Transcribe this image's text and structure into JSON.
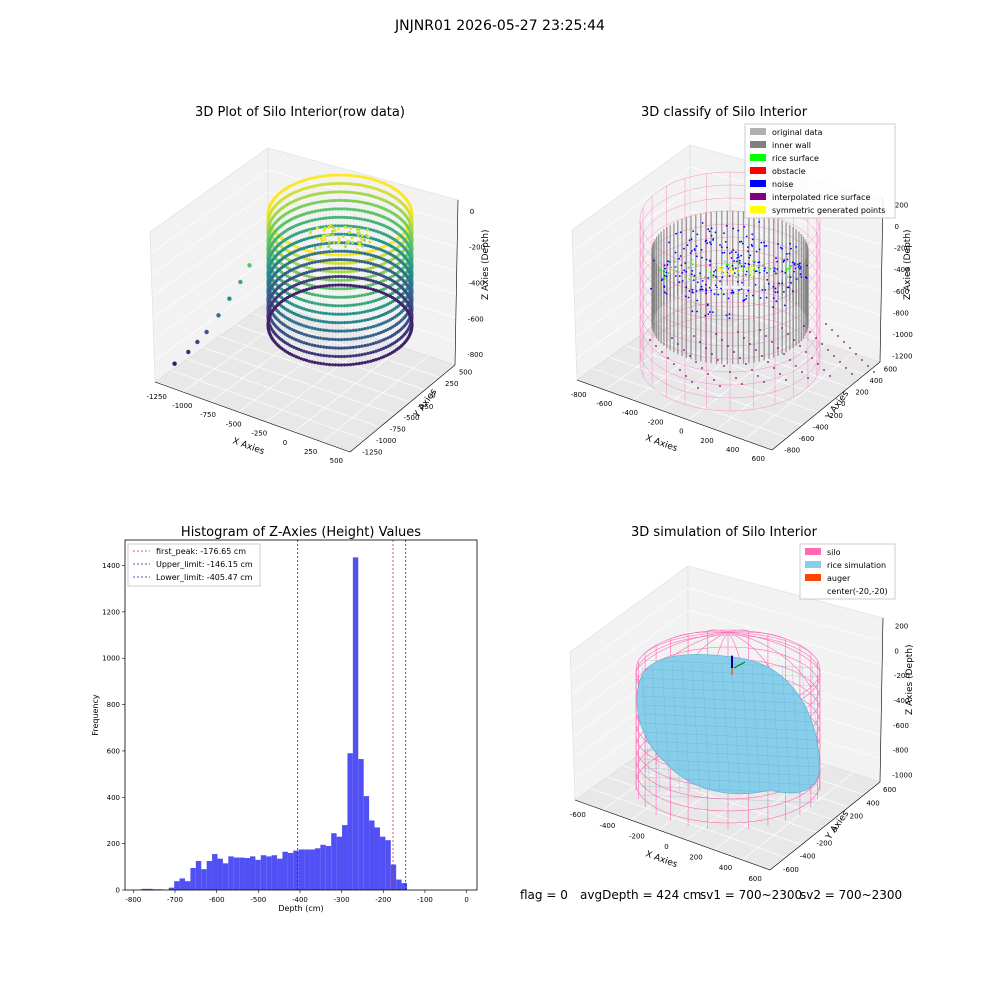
{
  "figure": {
    "suptitle": "JNJNR01 2026-05-27 23:25:44"
  },
  "status": {
    "flag": "flag = 0",
    "avg_depth": "avgDepth = 424 cm",
    "sv1": "sv1 = 700~2300",
    "sv2": "sv2 = 700~2300"
  },
  "colors": {
    "histogram_bar": "#5050f5",
    "first_peak": "#d62728",
    "limits": "#1f1fa8",
    "original_data": "#b0b0b0",
    "inner_wall": "#808080",
    "rice_surface": "#00ff00",
    "obstacle": "#ff0000",
    "noise": "#0000ff",
    "interpolated_rice_surface": "#800080",
    "symmetric_generated_points": "#ffff00",
    "silo": "#ff69b4",
    "rice_simulation": "#87ceeb",
    "auger": "#ff4500"
  },
  "chart_data": [
    {
      "type": "scatter",
      "panel": "raw",
      "title": "3D Plot of Silo Interior(row data)",
      "xlabel": "X Axies",
      "ylabel": "Y Axies",
      "zlabel": "Z Axies (Depth)",
      "x_ticks": [
        "-1250",
        "-1000",
        "-750",
        "-500",
        "-250",
        "0",
        "250",
        "500"
      ],
      "y_ticks": [
        "500",
        "250",
        "0",
        "-250",
        "-500",
        "-750",
        "-1000",
        "-1250"
      ],
      "z_ticks": [
        "0",
        "-200",
        "-400",
        "-600",
        "-800"
      ],
      "xlim": [
        -1250,
        500
      ],
      "ylim": [
        -1250,
        500
      ],
      "zlim": [
        -900,
        0
      ],
      "colormap": "viridis",
      "outlier_points": [
        {
          "x": -1200,
          "y": -1200,
          "z": -850
        },
        {
          "x": -1050,
          "y": -1050,
          "z": -780
        },
        {
          "x": -950,
          "y": -950,
          "z": -720
        },
        {
          "x": -850,
          "y": -850,
          "z": -660
        },
        {
          "x": -720,
          "y": -720,
          "z": -560
        },
        {
          "x": -600,
          "y": -600,
          "z": -460
        },
        {
          "x": -480,
          "y": -480,
          "z": -360
        },
        {
          "x": -380,
          "y": -380,
          "z": -260
        }
      ]
    },
    {
      "type": "scatter",
      "panel": "classify",
      "title": "3D classify of Silo Interior",
      "xlabel": "X Axies",
      "ylabel": "Y Axies",
      "zlabel": "Z Axies (Depth)",
      "x_ticks": [
        "-800",
        "-600",
        "-400",
        "-200",
        "0",
        "200",
        "400",
        "600"
      ],
      "y_ticks": [
        "600",
        "400",
        "200",
        "0",
        "-200",
        "-400",
        "-600",
        "-800"
      ],
      "z_ticks": [
        "200",
        "0",
        "-200",
        "-400",
        "-600",
        "-800",
        "-1000",
        "-1200"
      ],
      "xlim": [
        -800,
        650
      ],
      "ylim": [
        -800,
        650
      ],
      "zlim": [
        -1250,
        250
      ],
      "legend_position": "top-right",
      "legend": [
        {
          "label": "original data",
          "color_key": "original_data"
        },
        {
          "label": "inner wall",
          "color_key": "inner_wall"
        },
        {
          "label": "rice surface",
          "color_key": "rice_surface"
        },
        {
          "label": "obstacle",
          "color_key": "obstacle"
        },
        {
          "label": "noise",
          "color_key": "noise"
        },
        {
          "label": "interpolated rice surface",
          "color_key": "interpolated_rice_surface"
        },
        {
          "label": "symmetric generated points",
          "color_key": "symmetric_generated_points"
        }
      ]
    },
    {
      "type": "bar",
      "panel": "histogram",
      "title": "Histogram of Z-Axies (Height) Values",
      "xlabel": "Depth (cm)",
      "ylabel": "Frequency",
      "xlim": [
        -820,
        25
      ],
      "ylim": [
        0,
        1510
      ],
      "x_ticks": [
        -800,
        -700,
        -600,
        -500,
        -400,
        -300,
        -200,
        -100,
        0
      ],
      "y_ticks": [
        0,
        200,
        400,
        600,
        800,
        1000,
        1200,
        1400
      ],
      "bin_start": -780,
      "bin_width": 13,
      "values": [
        5,
        5,
        3,
        3,
        0,
        10,
        38,
        50,
        38,
        95,
        125,
        90,
        125,
        155,
        135,
        115,
        145,
        140,
        140,
        138,
        145,
        130,
        150,
        145,
        150,
        135,
        165,
        160,
        170,
        175,
        175,
        175,
        180,
        195,
        190,
        245,
        230,
        280,
        590,
        1435,
        565,
        405,
        300,
        270,
        230,
        215,
        110,
        45,
        30
      ],
      "vlines": [
        {
          "label": "first_peak: -176.65 cm",
          "x": -176.65,
          "color_key": "first_peak"
        },
        {
          "label": "Upper_limit: -146.15 cm",
          "x": -146.15,
          "color_key": "limits"
        },
        {
          "label": "Lower_limit: -405.47 cm",
          "x": -405.47,
          "color_key": "limits"
        }
      ],
      "legend_position": "top-left"
    },
    {
      "type": "surface",
      "panel": "simulation",
      "title": "3D simulation of Silo Interior",
      "xlabel": "X Axies",
      "ylabel": "Y Axies",
      "zlabel": "Z Axies (Depth)",
      "x_ticks": [
        "-600",
        "-400",
        "-200",
        "0",
        "200",
        "400",
        "600"
      ],
      "y_ticks": [
        "600",
        "400",
        "200",
        "0",
        "-200",
        "-400",
        "-600"
      ],
      "z_ticks": [
        "200",
        "0",
        "-200",
        "-400",
        "-600",
        "-800",
        "-1000"
      ],
      "xlim": [
        -700,
        700
      ],
      "ylim": [
        -700,
        700
      ],
      "zlim": [
        -1200,
        300
      ],
      "legend_position": "top-right",
      "legend": [
        {
          "label": "silo",
          "color_key": "silo"
        },
        {
          "label": "rice simulation",
          "color_key": "rice_simulation"
        },
        {
          "label": "auger",
          "color_key": "auger"
        },
        {
          "label": "center(-20,-20)",
          "color_key": ""
        }
      ]
    }
  ]
}
